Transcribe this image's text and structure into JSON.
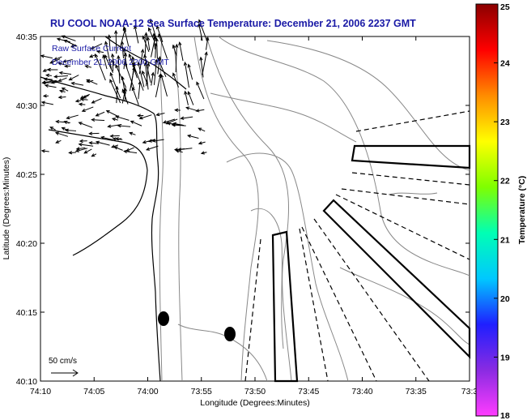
{
  "title": "RU COOL  NOAA-12  Sea Surface Temperature:  December 21, 2006 2237 GMT",
  "legend_lines": [
    "Raw Surface Current",
    "December 21, 2006 2200 GMT"
  ],
  "scale_label": "50 cm/s",
  "xlabel": "Longitude (Degrees:Minutes)",
  "ylabel": "Latitude (Degrees:Minutes)",
  "x_ticks": [
    "74:10",
    "74:05",
    "74:00",
    "73:55",
    "73:50",
    "73:45",
    "73:40",
    "73:35",
    "73:3"
  ],
  "y_ticks": [
    "40:35",
    "40:30",
    "40:25",
    "40:20",
    "40:15",
    "40:10"
  ],
  "colorbar": {
    "label": "Temperature (°C)",
    "ticks": [
      "25",
      "24",
      "23",
      "22",
      "21",
      "20",
      "19",
      "18"
    ],
    "range": [
      18,
      25
    ],
    "colors": [
      "#ff3cff",
      "#8a2be2",
      "#1f1fff",
      "#00c8ff",
      "#00ffb4",
      "#7fff00",
      "#ffff00",
      "#ff8c00",
      "#ff0000",
      "#8b0000"
    ]
  },
  "chart_data": {
    "type": "map",
    "xlim": [
      "74:10",
      "73:30"
    ],
    "ylim": [
      "40:10",
      "40:35"
    ],
    "land_mask": "white",
    "current_vector_region": "northwest (Raritan Bay / NY Harbor mouth)"
  }
}
